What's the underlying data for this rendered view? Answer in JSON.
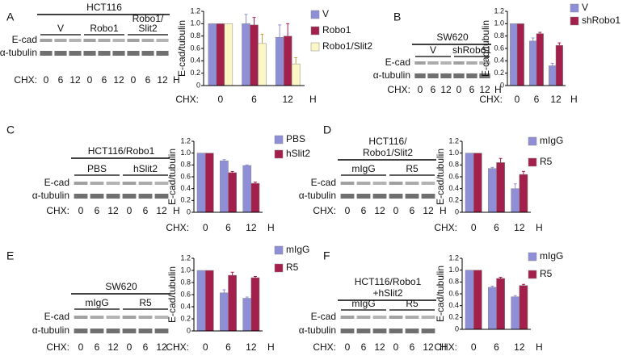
{
  "blots": [
    {
      "label": "A",
      "title": [
        "HCT116"
      ],
      "groups": [
        {
          "name": [
            "V"
          ],
          "lanes": [
            "0",
            "6",
            "12"
          ]
        },
        {
          "name": [
            "Robo1"
          ],
          "lanes": [
            "0",
            "6",
            "12"
          ]
        },
        {
          "name": [
            "Robo1/",
            "Slit2"
          ],
          "lanes": [
            "0",
            "6",
            "12"
          ]
        }
      ],
      "rows": [
        "E-cad",
        "α-tubulin"
      ],
      "chx": "CHX:",
      "unit": "H"
    },
    {
      "label": "B",
      "title": [
        "SW620"
      ],
      "groups": [
        {
          "name": [
            "V"
          ],
          "lanes": [
            "0",
            "6",
            "12"
          ]
        },
        {
          "name": [
            "shRobo1"
          ],
          "lanes": [
            "0",
            "6",
            "12"
          ]
        }
      ],
      "rows": [
        "E-cad",
        "α-tubulin"
      ],
      "chx": "CHX:",
      "unit": "H"
    },
    {
      "label": "C",
      "title": [
        "HCT116/Robo1"
      ],
      "groups": [
        {
          "name": [
            "PBS"
          ],
          "lanes": [
            "0",
            "6",
            "12"
          ]
        },
        {
          "name": [
            "hSlit2"
          ],
          "lanes": [
            "0",
            "6",
            "12"
          ]
        }
      ],
      "rows": [
        "E-cad",
        "α-tubulin"
      ],
      "chx": "CHX:",
      "unit": "H"
    },
    {
      "label": "D",
      "title": [
        "HCT116/",
        "Robo1/Slit2"
      ],
      "groups": [
        {
          "name": [
            "mIgG"
          ],
          "lanes": [
            "0",
            "6",
            "12"
          ]
        },
        {
          "name": [
            "R5"
          ],
          "lanes": [
            "0",
            "6",
            "12"
          ]
        }
      ],
      "rows": [
        "E-cad",
        "α-tubulin"
      ],
      "chx": "CHX:",
      "unit": "H"
    },
    {
      "label": "E",
      "title": [
        "SW620"
      ],
      "groups": [
        {
          "name": [
            "mIgG"
          ],
          "lanes": [
            "0",
            "6",
            "12"
          ]
        },
        {
          "name": [
            "R5"
          ],
          "lanes": [
            "0",
            "6",
            "12"
          ]
        }
      ],
      "rows": [
        "E-cad",
        "α-tubulin"
      ],
      "chx": "CHX:",
      "unit": "H"
    },
    {
      "label": "F",
      "title": [
        "HCT116/Robo1",
        "+hSlit2"
      ],
      "groups": [
        {
          "name": [
            "mIgG"
          ],
          "lanes": [
            "0",
            "6",
            "12"
          ]
        },
        {
          "name": [
            "R5"
          ],
          "lanes": [
            "0",
            "6",
            "12"
          ]
        }
      ],
      "rows": [
        "E-cad",
        "α-tubulin"
      ],
      "chx": "CHX:",
      "unit": "H"
    }
  ],
  "chart_data": [
    {
      "type": "bar",
      "y_label": "E-cad/tubulin",
      "x_prefix": "CHX:",
      "x_unit": "H",
      "categories": [
        "0",
        "6",
        "12"
      ],
      "series": [
        {
          "name": "V",
          "color": "#8f8fd8",
          "values": [
            1,
            1,
            0.78
          ],
          "errors": [
            0,
            0.15,
            0.2
          ]
        },
        {
          "name": "Robo1",
          "color": "#a3204c",
          "values": [
            1,
            0.98,
            0.8
          ],
          "errors": [
            0,
            0.12,
            0.2
          ]
        },
        {
          "name": "Robo1/Slit2",
          "color": "#fbf7c4",
          "values": [
            1,
            0.68,
            0.35
          ],
          "errors": [
            0,
            0.15,
            0.1
          ]
        }
      ],
      "ylim": [
        0,
        1.2
      ],
      "yticks": [
        0,
        0.2,
        0.4,
        0.6,
        0.8,
        {
          "value": 1,
          "label": "1.0"
        },
        1.2
      ]
    },
    {
      "type": "bar",
      "y_label": "E-cad/tubulin",
      "x_prefix": "CHX:",
      "x_unit": "H",
      "categories": [
        "0",
        "6",
        "12"
      ],
      "series": [
        {
          "name": "V",
          "color": "#8f8fd8",
          "values": [
            1,
            0.72,
            0.32
          ],
          "errors": [
            0,
            0.05,
            0.04
          ]
        },
        {
          "name": "shRobo1",
          "color": "#a3204c",
          "values": [
            1,
            0.84,
            0.65
          ],
          "errors": [
            0,
            0.02,
            0.04
          ]
        }
      ],
      "ylim": [
        0,
        1.2
      ],
      "yticks": [
        0,
        0.2,
        0.4,
        0.6,
        0.8,
        {
          "value": 1,
          "label": "1.0"
        },
        1.2
      ]
    },
    {
      "type": "bar",
      "y_label": "E-cad/tubulin",
      "x_prefix": "CHX:",
      "x_unit": "H",
      "categories": [
        "0",
        "6",
        "12"
      ],
      "series": [
        {
          "name": "PBS",
          "color": "#8f8fd8",
          "values": [
            1,
            0.87,
            0.79
          ],
          "errors": [
            0,
            0.02,
            0.01
          ]
        },
        {
          "name": "hSlit2",
          "color": "#a3204c",
          "values": [
            1,
            0.67,
            0.49
          ],
          "errors": [
            0,
            0.02,
            0.02
          ]
        }
      ],
      "ylim": [
        0,
        1.2
      ],
      "yticks": [
        0,
        0.2,
        0.4,
        0.6,
        0.8,
        {
          "value": 1,
          "label": "1.0"
        },
        1.2
      ]
    },
    {
      "type": "bar",
      "y_label": "E-cad/tubulin",
      "x_prefix": "CHX:",
      "x_unit": "H",
      "categories": [
        "0",
        "6",
        "12"
      ],
      "series": [
        {
          "name": "mIgG",
          "color": "#8f8fd8",
          "values": [
            1,
            0.74,
            0.4
          ],
          "errors": [
            0,
            0.02,
            0.08
          ]
        },
        {
          "name": "R5",
          "color": "#a3204c",
          "values": [
            1,
            0.84,
            0.64
          ],
          "errors": [
            0,
            0.07,
            0.05
          ]
        }
      ],
      "ylim": [
        0,
        1.2
      ],
      "yticks": [
        0,
        0.2,
        0.4,
        0.6,
        0.8,
        {
          "value": 1,
          "label": "1.0"
        },
        1.2
      ]
    },
    {
      "type": "bar",
      "y_label": "E-cad/tubulin",
      "x_prefix": "CHX:",
      "x_unit": "H",
      "categories": [
        "0",
        "6",
        "12"
      ],
      "series": [
        {
          "name": "mIgG",
          "color": "#8f8fd8",
          "values": [
            1,
            0.63,
            0.54
          ],
          "errors": [
            0,
            0.05,
            0.02
          ]
        },
        {
          "name": "R5",
          "color": "#a3204c",
          "values": [
            1,
            0.92,
            0.88
          ],
          "errors": [
            0,
            0.05,
            0.02
          ]
        }
      ],
      "ylim": [
        0,
        1.2
      ],
      "yticks": [
        0,
        0.2,
        0.4,
        0.6,
        0.8,
        {
          "value": 1,
          "label": "1.0"
        },
        1.2
      ]
    },
    {
      "type": "bar",
      "y_label": "E-cad/tubulin",
      "x_prefix": "CHX:",
      "x_unit": "H",
      "categories": [
        "0",
        "6",
        "12"
      ],
      "series": [
        {
          "name": "mIgG",
          "color": "#8f8fd8",
          "values": [
            1,
            0.71,
            0.55
          ],
          "errors": [
            0,
            0.02,
            0.02
          ]
        },
        {
          "name": "R5",
          "color": "#a3204c",
          "values": [
            1,
            0.86,
            0.74
          ],
          "errors": [
            0,
            0.02,
            0.02
          ]
        }
      ],
      "ylim": [
        0,
        1.2
      ],
      "yticks": [
        0,
        0.2,
        0.4,
        0.6,
        0.8,
        {
          "value": 1,
          "label": "1.0"
        },
        1.2
      ]
    }
  ]
}
